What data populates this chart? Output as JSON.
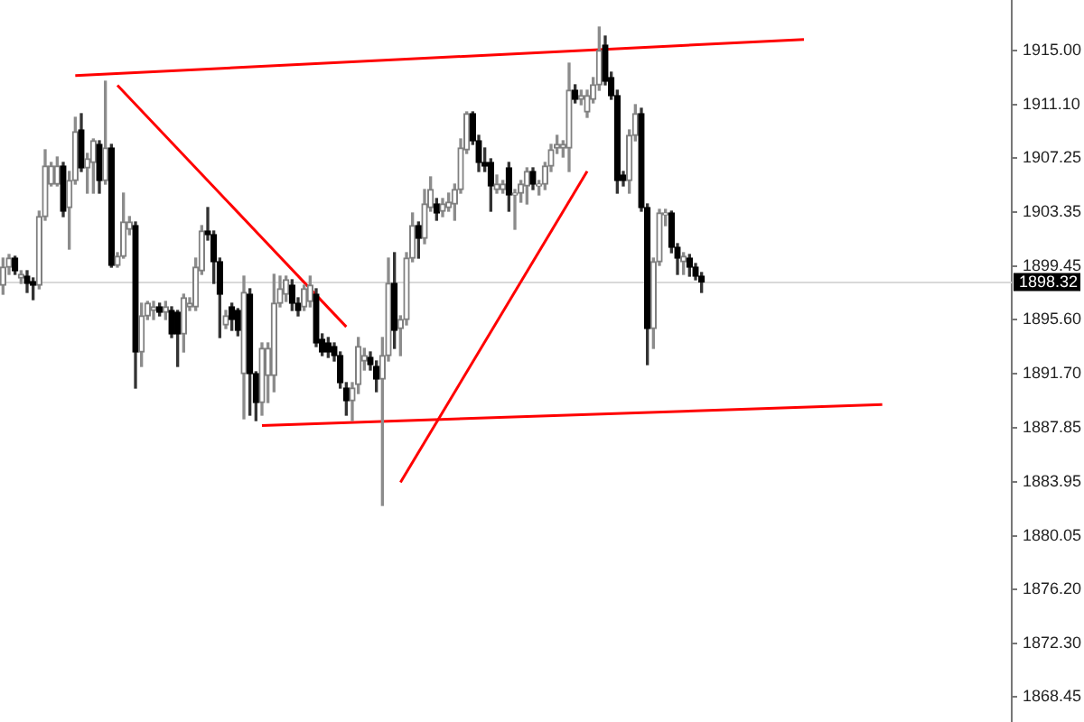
{
  "chart_data": {
    "type": "candlestick",
    "categories": [
      null,
      null,
      null,
      null,
      null,
      null,
      null,
      null,
      null,
      null,
      null,
      null,
      null,
      null,
      null,
      null,
      null,
      null,
      null,
      null,
      null,
      null,
      null,
      null,
      null,
      null,
      null,
      null,
      null,
      null,
      null,
      null,
      null,
      null,
      null,
      null,
      null,
      null,
      null,
      null,
      null,
      null,
      null,
      null,
      null,
      null,
      null,
      null,
      null,
      null,
      null,
      null,
      null,
      null,
      null,
      null,
      null,
      null,
      null,
      null,
      null,
      null,
      null,
      null,
      null,
      null,
      null,
      null,
      null,
      null,
      null,
      null,
      null,
      null,
      null,
      null,
      null,
      null,
      null,
      null,
      null,
      null,
      null,
      null,
      null,
      null,
      null,
      null,
      null,
      null,
      null,
      null,
      null,
      null,
      null,
      null,
      null,
      null,
      null,
      null,
      null,
      null,
      null,
      null,
      null,
      null,
      null,
      null,
      null,
      null,
      null,
      null,
      null,
      null,
      null,
      null,
      null,
      null,
      null,
      null,
      null,
      null,
      null,
      null,
      null,
      null,
      null,
      null,
      null,
      null,
      null,
      null,
      null,
      null,
      null,
      null,
      null,
      null,
      null,
      null,
      null,
      null,
      null,
      null,
      null,
      null,
      null,
      null,
      null,
      null,
      null,
      null,
      null,
      null,
      null,
      null,
      null,
      null,
      null,
      null,
      null,
      null,
      null,
      null,
      null,
      null,
      null,
      null
    ],
    "ohlc": [
      [
        1898.1,
        1900.05,
        1897.45,
        1899.4
      ],
      [
        1899.4,
        1900.31,
        1898.88,
        1900.05
      ],
      [
        1900.05,
        1900.18,
        1898.88,
        1899.14
      ],
      [
        1898.62,
        1899.14,
        1898.23,
        1898.88
      ],
      [
        1898.75,
        1899.14,
        1897.58,
        1898.23
      ],
      [
        1898.36,
        1898.62,
        1897.06,
        1898.1
      ],
      [
        1898.1,
        1903.43,
        1897.84,
        1903.04
      ],
      [
        1903.04,
        1907.85,
        1902.78,
        1906.68
      ],
      [
        1905.38,
        1906.94,
        1905.25,
        1906.68
      ],
      [
        1905.38,
        1907.33,
        1905.25,
        1906.68
      ],
      [
        1906.68,
        1906.94,
        1903.04,
        1903.43
      ],
      [
        1903.69,
        1906.29,
        1900.7,
        1905.64
      ],
      [
        1905.64,
        1910.19,
        1905.38,
        1909.15
      ],
      [
        1909.28,
        1910.45,
        1906.29,
        1906.55
      ],
      [
        1906.55,
        1907.59,
        1904.73,
        1907.2
      ],
      [
        1906.94,
        1908.63,
        1904.73,
        1908.5
      ],
      [
        1908.24,
        1908.5,
        1904.73,
        1905.64
      ],
      [
        1905.64,
        1912.79,
        1905.38,
        1907.98
      ],
      [
        1907.98,
        1908.24,
        1899.4,
        1899.53
      ],
      [
        1899.53,
        1900.44,
        1899.4,
        1900.18
      ],
      [
        1900.18,
        1904.73,
        1900.05,
        1902.65
      ],
      [
        1902.13,
        1903.04,
        1901.74,
        1902.65
      ],
      [
        1902.39,
        1902.65,
        1890.69,
        1893.29
      ],
      [
        1893.29,
        1896.8,
        1892.25,
        1895.89
      ],
      [
        1895.89,
        1896.93,
        1895.63,
        1896.8
      ],
      [
        1896.28,
        1896.93,
        1895.63,
        1896.54
      ],
      [
        1896.54,
        1896.8,
        1895.89,
        1896.15
      ],
      [
        1896.15,
        1896.93,
        1895.63,
        1896.54
      ],
      [
        1896.28,
        1896.54,
        1894.33,
        1894.59
      ],
      [
        1896.15,
        1896.28,
        1892.25,
        1894.59
      ],
      [
        1894.59,
        1897.45,
        1893.29,
        1897.19
      ],
      [
        1896.54,
        1897.19,
        1896.28,
        1896.8
      ],
      [
        1896.54,
        1900.05,
        1896.28,
        1899.4
      ],
      [
        1899.14,
        1902.39,
        1898.88,
        1902.0
      ],
      [
        1902.0,
        1903.69,
        1901.35,
        1901.74
      ],
      [
        1901.74,
        1902.0,
        1898.23,
        1899.79
      ],
      [
        1899.79,
        1900.05,
        1894.33,
        1897.45
      ],
      [
        1895.24,
        1896.28,
        1894.98,
        1895.89
      ],
      [
        1896.54,
        1896.8,
        1894.85,
        1895.63
      ],
      [
        1896.28,
        1896.41,
        1894.46,
        1894.85
      ],
      [
        1891.73,
        1898.75,
        1888.48,
        1897.58
      ],
      [
        1897.45,
        1897.84,
        1888.74,
        1891.73
      ],
      [
        1891.73,
        1891.86,
        1888.35,
        1889.65
      ],
      [
        1889.65,
        1893.94,
        1888.74,
        1893.55
      ],
      [
        1891.6,
        1893.94,
        1889.65,
        1893.55
      ],
      [
        1891.6,
        1898.88,
        1890.43,
        1896.8
      ],
      [
        1896.8,
        1898.75,
        1896.54,
        1897.84
      ],
      [
        1897.45,
        1898.75,
        1896.93,
        1898.49
      ],
      [
        1898.1,
        1898.49,
        1896.28,
        1896.8
      ],
      [
        1896.8,
        1897.19,
        1895.89,
        1896.28
      ],
      [
        1896.54,
        1898.1,
        1896.28,
        1897.84
      ],
      [
        1896.93,
        1898.75,
        1896.54,
        1898.1
      ],
      [
        1897.45,
        1897.84,
        1893.68,
        1893.94
      ],
      [
        1894.2,
        1894.59,
        1893.03,
        1893.29
      ],
      [
        1893.94,
        1894.33,
        1892.9,
        1893.29
      ],
      [
        1893.68,
        1893.94,
        1892.64,
        1893.03
      ],
      [
        1893.03,
        1893.29,
        1890.69,
        1891.08
      ],
      [
        1890.69,
        1891.08,
        1888.74,
        1889.78
      ],
      [
        1889.78,
        1891.08,
        1888.35,
        1890.69
      ],
      [
        1890.95,
        1894.33,
        1890.3,
        1893.68
      ],
      [
        1892.64,
        1893.55,
        1891.99,
        1893.03
      ],
      [
        1892.9,
        1893.29,
        1891.99,
        1892.38
      ],
      [
        1892.25,
        1892.64,
        1890.43,
        1891.34
      ],
      [
        1891.34,
        1894.33,
        1882.24,
        1893.03
      ],
      [
        1893.03,
        1900.05,
        1892.64,
        1898.23
      ],
      [
        1898.23,
        1900.44,
        1893.55,
        1894.85
      ],
      [
        1894.98,
        1895.89,
        1893.03,
        1895.63
      ],
      [
        1895.63,
        1900.44,
        1895.24,
        1900.05
      ],
      [
        1900.05,
        1903.3,
        1899.79,
        1902.39
      ],
      [
        1902.39,
        1902.65,
        1900.05,
        1901.48
      ],
      [
        1901.48,
        1904.99,
        1901.09,
        1903.95
      ],
      [
        1903.69,
        1905.9,
        1903.43,
        1904.99
      ],
      [
        1903.95,
        1904.34,
        1902.78,
        1903.3
      ],
      [
        1903.43,
        1904.34,
        1903.04,
        1903.95
      ],
      [
        1903.69,
        1904.73,
        1903.43,
        1904.08
      ],
      [
        1903.95,
        1905.38,
        1902.78,
        1904.99
      ],
      [
        1904.99,
        1908.63,
        1904.73,
        1907.98
      ],
      [
        1907.85,
        1910.58,
        1907.59,
        1910.45
      ],
      [
        1910.45,
        1910.58,
        1908.24,
        1908.5
      ],
      [
        1908.5,
        1908.89,
        1906.29,
        1906.94
      ],
      [
        1906.94,
        1907.98,
        1906.29,
        1906.68
      ],
      [
        1906.94,
        1907.2,
        1903.43,
        1905.25
      ],
      [
        1904.99,
        1906.03,
        1904.73,
        1905.38
      ],
      [
        1904.99,
        1905.64,
        1904.73,
        1905.38
      ],
      [
        1906.55,
        1906.94,
        1903.43,
        1904.6
      ],
      [
        1904.6,
        1904.99,
        1902.13,
        1904.73
      ],
      [
        1904.73,
        1905.64,
        1904.08,
        1905.38
      ],
      [
        1905.25,
        1906.55,
        1903.95,
        1906.29
      ],
      [
        1906.29,
        1906.55,
        1904.99,
        1905.38
      ],
      [
        1905.25,
        1905.64,
        1904.6,
        1905.38
      ],
      [
        1905.38,
        1906.94,
        1904.99,
        1906.68
      ],
      [
        1906.68,
        1908.24,
        1906.29,
        1907.85
      ],
      [
        1907.98,
        1908.89,
        1907.59,
        1908.24
      ],
      [
        1907.98,
        1908.5,
        1907.33,
        1908.24
      ],
      [
        1907.98,
        1914.09,
        1906.29,
        1912.14
      ],
      [
        1912.14,
        1912.53,
        1911.23,
        1911.49
      ],
      [
        1911.49,
        1912.14,
        1911.1,
        1911.75
      ],
      [
        1910.58,
        1912.14,
        1910.19,
        1911.75
      ],
      [
        1911.49,
        1913.05,
        1911.23,
        1912.53
      ],
      [
        1912.53,
        1916.69,
        1912.14,
        1915.0
      ],
      [
        1915.39,
        1916.04,
        1912.53,
        1912.79
      ],
      [
        1913.05,
        1913.44,
        1911.49,
        1911.75
      ],
      [
        1911.75,
        1912.14,
        1904.73,
        1905.64
      ],
      [
        1906.03,
        1906.29,
        1905.25,
        1905.64
      ],
      [
        1905.64,
        1909.28,
        1904.73,
        1908.89
      ],
      [
        1908.89,
        1911.1,
        1908.5,
        1910.45
      ],
      [
        1910.45,
        1910.84,
        1903.43,
        1903.69
      ],
      [
        1903.69,
        1903.95,
        1892.38,
        1894.98
      ],
      [
        1894.98,
        1900.05,
        1893.55,
        1899.79
      ],
      [
        1899.79,
        1903.56,
        1899.53,
        1903.3
      ],
      [
        1903.17,
        1903.56,
        1902.39,
        1903.3
      ],
      [
        1903.3,
        1903.43,
        1900.44,
        1900.83
      ],
      [
        1900.83,
        1901.09,
        1898.88,
        1900.05
      ],
      [
        1899.79,
        1900.44,
        1898.88,
        1900.18
      ],
      [
        1900.05,
        1900.31,
        1898.75,
        1899.4
      ],
      [
        1899.4,
        1899.66,
        1898.49,
        1898.75
      ],
      [
        1898.75,
        1899.01,
        1897.58,
        1898.32
      ],
      null,
      null,
      null,
      null,
      null,
      null,
      null,
      null,
      null,
      null,
      null,
      null,
      null,
      null,
      null,
      null,
      null,
      null,
      null,
      null,
      null,
      null,
      null,
      null,
      null,
      null,
      null,
      null,
      null,
      null,
      null,
      null,
      null,
      null,
      null,
      null,
      null,
      null,
      null,
      null,
      null,
      null,
      null,
      null,
      null,
      null,
      null,
      null,
      null,
      null,
      null
    ],
    "series": [
      {
        "type": "line",
        "color": "#ff0000",
        "values": [
          null,
          null,
          null,
          null,
          null,
          null,
          null,
          null,
          null,
          null,
          null,
          null,
          1913.2,
          null,
          null,
          null,
          null,
          null,
          null,
          null,
          null,
          null,
          null,
          null,
          null,
          null,
          null,
          null,
          null,
          null,
          null,
          null,
          null,
          null,
          null,
          null,
          null,
          null,
          null,
          null,
          null,
          null,
          null,
          null,
          null,
          null,
          null,
          null,
          null,
          null,
          null,
          null,
          null,
          null,
          null,
          null,
          null,
          null,
          null,
          null,
          null,
          null,
          null,
          null,
          null,
          null,
          null,
          null,
          null,
          null,
          null,
          null,
          null,
          null,
          null,
          null,
          null,
          null,
          null,
          null,
          null,
          null,
          null,
          null,
          null,
          null,
          null,
          null,
          null,
          null,
          null,
          null,
          null,
          null,
          null,
          null,
          null,
          null,
          null,
          null,
          null,
          null,
          null,
          null,
          null,
          null,
          null,
          null,
          null,
          null,
          null,
          null,
          null,
          null,
          null,
          null,
          null,
          null,
          null,
          null,
          null,
          null,
          null,
          null,
          null,
          null,
          null,
          null,
          null,
          null,
          null,
          null,
          null,
          1915.8,
          null,
          null,
          null,
          null,
          null,
          null,
          null,
          null,
          null,
          null,
          null,
          null,
          null,
          null,
          null,
          null,
          null,
          null,
          null,
          null,
          null,
          null,
          null,
          null,
          null,
          null,
          null,
          null,
          null,
          null,
          null,
          null,
          null,
          null
        ]
      },
      {
        "type": "line",
        "color": "#ff0000",
        "values": [
          null,
          null,
          null,
          null,
          null,
          null,
          null,
          null,
          null,
          null,
          null,
          null,
          null,
          null,
          null,
          null,
          null,
          null,
          null,
          1912.5,
          null,
          null,
          null,
          null,
          null,
          null,
          null,
          null,
          null,
          null,
          null,
          null,
          null,
          null,
          null,
          null,
          null,
          null,
          null,
          null,
          null,
          null,
          null,
          null,
          null,
          null,
          null,
          null,
          null,
          null,
          null,
          null,
          null,
          null,
          null,
          null,
          null,
          1895.1,
          null,
          null,
          null,
          null,
          null,
          null,
          null,
          null,
          null,
          null,
          null,
          null,
          null,
          null,
          null,
          null,
          null,
          null,
          null,
          null,
          null,
          null,
          null,
          null,
          null,
          null,
          null,
          null,
          null,
          null,
          null,
          null,
          null,
          null,
          null,
          null,
          null,
          null,
          null,
          null,
          null,
          null,
          null,
          null,
          null,
          null,
          null,
          null,
          null,
          null,
          null,
          null,
          null,
          null,
          null,
          null,
          null,
          null,
          null,
          null,
          null,
          null,
          null,
          null,
          null,
          null,
          null,
          null,
          null,
          null,
          null,
          null,
          null,
          null,
          null,
          null,
          null,
          null,
          null,
          null,
          null,
          null,
          null,
          null,
          null,
          null,
          null,
          null,
          null,
          null,
          null,
          null,
          null,
          null,
          null,
          null,
          null,
          null,
          null,
          null,
          null,
          null,
          null,
          null,
          null,
          null,
          null,
          null,
          null,
          null
        ]
      },
      {
        "type": "line",
        "color": "#ff0000",
        "values": [
          null,
          null,
          null,
          null,
          null,
          null,
          null,
          null,
          null,
          null,
          null,
          null,
          null,
          null,
          null,
          null,
          null,
          null,
          null,
          null,
          null,
          null,
          null,
          null,
          null,
          null,
          null,
          null,
          null,
          null,
          null,
          null,
          null,
          null,
          null,
          null,
          null,
          null,
          null,
          null,
          null,
          null,
          null,
          1888.0,
          null,
          null,
          null,
          null,
          null,
          null,
          null,
          null,
          null,
          null,
          null,
          null,
          null,
          null,
          null,
          null,
          null,
          null,
          null,
          null,
          null,
          null,
          null,
          null,
          null,
          null,
          null,
          null,
          null,
          null,
          null,
          null,
          null,
          null,
          null,
          null,
          null,
          null,
          null,
          null,
          null,
          null,
          null,
          null,
          null,
          null,
          null,
          null,
          null,
          null,
          null,
          null,
          null,
          null,
          null,
          null,
          null,
          null,
          null,
          null,
          null,
          null,
          null,
          null,
          null,
          null,
          null,
          null,
          null,
          null,
          null,
          null,
          null,
          null,
          null,
          null,
          null,
          null,
          null,
          null,
          null,
          null,
          null,
          null,
          null,
          null,
          null,
          null,
          null,
          null,
          null,
          null,
          null,
          null,
          null,
          null,
          null,
          null,
          null,
          null,
          null,
          null,
          1889.5,
          null,
          null,
          null,
          null,
          null,
          null,
          null,
          null,
          null,
          null,
          null,
          null,
          null,
          null,
          null,
          null,
          null,
          null,
          null,
          null,
          null
        ]
      },
      {
        "type": "line",
        "color": "#ff0000",
        "values": [
          null,
          null,
          null,
          null,
          null,
          null,
          null,
          null,
          null,
          null,
          null,
          null,
          null,
          null,
          null,
          null,
          null,
          null,
          null,
          null,
          null,
          null,
          null,
          null,
          null,
          null,
          null,
          null,
          null,
          null,
          null,
          null,
          null,
          null,
          null,
          null,
          null,
          null,
          null,
          null,
          null,
          null,
          null,
          null,
          null,
          null,
          null,
          null,
          null,
          null,
          null,
          null,
          null,
          null,
          null,
          null,
          null,
          null,
          null,
          null,
          null,
          null,
          null,
          null,
          null,
          null,
          1883.9,
          null,
          null,
          null,
          null,
          null,
          null,
          null,
          null,
          null,
          null,
          null,
          null,
          null,
          null,
          null,
          null,
          null,
          null,
          null,
          null,
          null,
          null,
          null,
          null,
          null,
          null,
          null,
          null,
          null,
          null,
          1906.3,
          null,
          null,
          null,
          null,
          null,
          null,
          null,
          null,
          null,
          null,
          null,
          null,
          null,
          null,
          null,
          null,
          null,
          null,
          null,
          null,
          null,
          null,
          null,
          null,
          null,
          null,
          null,
          null,
          null,
          null,
          null,
          null,
          null,
          null,
          null,
          null,
          null,
          null,
          null,
          null,
          null,
          null,
          null,
          null,
          null,
          null,
          null,
          null,
          null,
          null,
          null,
          null,
          null,
          null,
          null,
          null,
          null,
          null,
          null,
          null,
          null,
          null,
          null,
          null,
          null,
          null,
          null,
          null,
          null,
          null
        ]
      }
    ],
    "ylim": [
      1866.64,
      1918.64
    ],
    "yticks": [
      {
        "value": 1868.45,
        "label": "1868.45"
      },
      {
        "value": 1872.3,
        "label": "1872.30"
      },
      {
        "value": 1876.2,
        "label": "1876.20"
      },
      {
        "value": 1880.05,
        "label": "1880.05"
      },
      {
        "value": 1883.95,
        "label": "1883.95"
      },
      {
        "value": 1887.85,
        "label": "1887.85"
      },
      {
        "value": 1891.7,
        "label": "1891.70"
      },
      {
        "value": 1895.6,
        "label": "1895.60"
      },
      {
        "value": 1899.45,
        "label": "1899.45"
      },
      {
        "value": 1903.35,
        "label": "1903.35"
      },
      {
        "value": 1907.25,
        "label": "1907.25"
      },
      {
        "value": 1911.1,
        "label": "1911.10"
      },
      {
        "value": 1915,
        "label": "1915.00"
      }
    ],
    "ref_lines": [
      {
        "axis": "y",
        "value": 1898.32,
        "label": "1898.32",
        "color": "#d9d9d9"
      }
    ],
    "tick_labels": "y"
  }
}
